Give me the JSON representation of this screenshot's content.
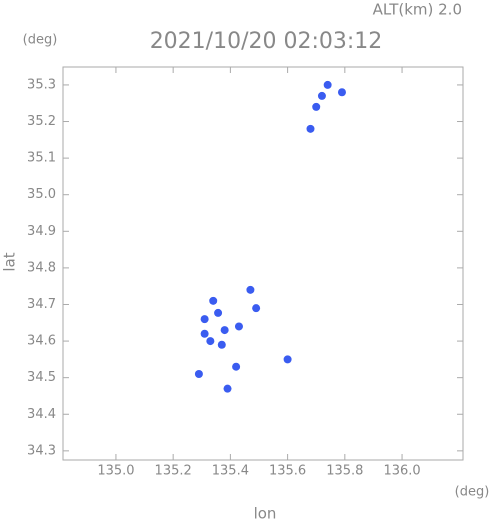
{
  "chart_data": {
    "type": "scatter",
    "title": "2021/10/20 02:03:12",
    "subtitle": "ALT(km) 2.0",
    "x_label": "lon",
    "y_label": "lat",
    "x_unit": "(deg)",
    "y_unit": "(deg)",
    "x": [
      135.74,
      135.72,
      135.7,
      135.79,
      135.68,
      135.34,
      135.357,
      135.31,
      135.38,
      135.33,
      135.37,
      135.43,
      135.47,
      135.49,
      135.42,
      135.39,
      135.29,
      135.6,
      135.31
    ],
    "values": [
      35.3,
      35.27,
      35.24,
      35.28,
      35.18,
      34.71,
      34.677,
      34.66,
      34.63,
      34.6,
      34.59,
      34.64,
      34.74,
      34.69,
      34.53,
      34.47,
      34.51,
      34.55,
      34.62
    ],
    "color": "#3a5cf0",
    "xlim": [
      134.815,
      136.213
    ],
    "ylim": [
      34.275,
      35.349
    ],
    "xticks": [
      {
        "value": 135.0,
        "label": "135.0"
      },
      135.2,
      135.4,
      135.6,
      135.8,
      {
        "value": 136.0,
        "label": "136.0"
      }
    ],
    "yticks": [
      34.3,
      34.4,
      34.5,
      34.6,
      34.7,
      34.8,
      34.9,
      {
        "value": 35.0,
        "label": "35.0"
      },
      35.1,
      35.2,
      35.3
    ]
  }
}
